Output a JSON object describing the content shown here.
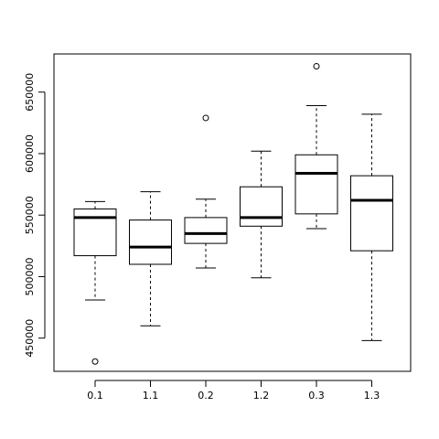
{
  "chart_data": {
    "type": "box",
    "title": "",
    "xlabel": "",
    "ylabel": "",
    "grid": false,
    "categories": [
      "0.1",
      "1.1",
      "0.2",
      "1.2",
      "0.3",
      "1.3"
    ],
    "boxes": [
      {
        "label": "0.1",
        "whisker_low": 481000,
        "q1": 517000,
        "median": 548000,
        "q3": 555000,
        "whisker_high": 561000,
        "outliers": [
          431000
        ]
      },
      {
        "label": "1.1",
        "whisker_low": 460000,
        "q1": 510000,
        "median": 524000,
        "q3": 546000,
        "whisker_high": 569000,
        "outliers": []
      },
      {
        "label": "0.2",
        "whisker_low": 507000,
        "q1": 527000,
        "median": 535000,
        "q3": 548000,
        "whisker_high": 563000,
        "outliers": [
          629000
        ]
      },
      {
        "label": "1.2",
        "whisker_low": 499000,
        "q1": 541000,
        "median": 548000,
        "q3": 573000,
        "whisker_high": 602000,
        "outliers": []
      },
      {
        "label": "0.3",
        "whisker_low": 539000,
        "q1": 551000,
        "median": 584000,
        "q3": 599000,
        "whisker_high": 639000,
        "outliers": [
          671000
        ]
      },
      {
        "label": "1.3",
        "whisker_low": 448000,
        "q1": 521000,
        "median": 562000,
        "q3": 582000,
        "whisker_high": 632000,
        "outliers": []
      }
    ],
    "yticks": [
      450000,
      500000,
      550000,
      600000,
      650000
    ],
    "ytick_labels": [
      "450000",
      "500000",
      "550000",
      "600000",
      "650000"
    ],
    "ylim": [
      423000,
      681000
    ]
  }
}
